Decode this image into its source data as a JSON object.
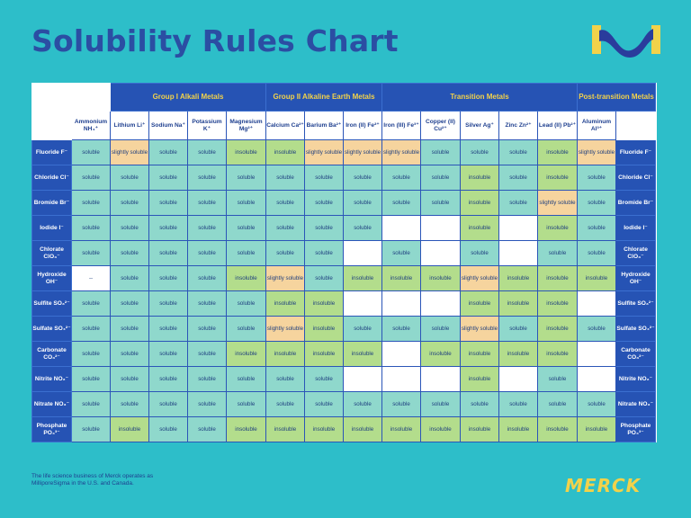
{
  "title": "Solubility Rules Chart",
  "footer_note": "The life science business of Merck operates as MilliporeSigma in the U.S. and Canada.",
  "brand_bottom": "MERCK",
  "group_headers": [
    {
      "label": "Group I Alkali Metals",
      "span": 4
    },
    {
      "label": "Group II Alkaline Earth Metals",
      "span": 3
    },
    {
      "label": "Transition Metals",
      "span": 5
    },
    {
      "label": "Post-transition Metals",
      "span": 2
    }
  ],
  "cations": [
    "Ammonium NH₄⁺",
    "Lithium Li⁺",
    "Sodium Na⁺",
    "Potassium K⁺",
    "Magnesium Mg²⁺",
    "Calcium Ca²⁺",
    "Barium Ba²⁺",
    "Iron (II) Fe²⁺",
    "Iron (III) Fe³⁺",
    "Copper (II) Cu²⁺",
    "Silver Ag⁺",
    "Zinc Zn²⁺",
    "Lead (II) Pb²⁺",
    "Aluminum Al³⁺"
  ],
  "anions": [
    "Fluoride F⁻",
    "Chloride Cl⁻",
    "Bromide Br⁻",
    "Iodide I⁻",
    "Chlorate ClO₃⁻",
    "Hydroxide OH⁻",
    "Sulfite SO₃²⁻",
    "Sulfate SO₄²⁻",
    "Carbonate CO₃²⁻",
    "Nitrite NO₂⁻",
    "Nitrate NO₃⁻",
    "Phosphate PO₄³⁻"
  ],
  "rows": [
    [
      "soluble",
      "slightly soluble",
      "soluble",
      "soluble",
      "insoluble",
      "insoluble",
      "slightly soluble",
      "slightly soluble",
      "slightly soluble",
      "soluble",
      "soluble",
      "soluble",
      "insoluble",
      "slightly soluble"
    ],
    [
      "soluble",
      "soluble",
      "soluble",
      "soluble",
      "soluble",
      "soluble",
      "soluble",
      "soluble",
      "soluble",
      "soluble",
      "insoluble",
      "soluble",
      "insoluble",
      "soluble"
    ],
    [
      "soluble",
      "soluble",
      "soluble",
      "soluble",
      "soluble",
      "soluble",
      "soluble",
      "soluble",
      "soluble",
      "soluble",
      "insoluble",
      "soluble",
      "slightly soluble",
      "soluble"
    ],
    [
      "soluble",
      "soluble",
      "soluble",
      "soluble",
      "soluble",
      "soluble",
      "soluble",
      "soluble",
      "",
      "",
      "insoluble",
      "",
      "insoluble",
      "soluble"
    ],
    [
      "soluble",
      "soluble",
      "soluble",
      "soluble",
      "soluble",
      "soluble",
      "soluble",
      "",
      "soluble",
      "",
      "soluble",
      "",
      "soluble",
      "soluble"
    ],
    [
      "--",
      "soluble",
      "soluble",
      "soluble",
      "insoluble",
      "slightly soluble",
      "soluble",
      "insoluble",
      "insoluble",
      "insoluble",
      "slightly soluble",
      "insoluble",
      "insoluble",
      "insoluble"
    ],
    [
      "soluble",
      "soluble",
      "soluble",
      "soluble",
      "soluble",
      "insoluble",
      "insoluble",
      "",
      "",
      "",
      "insoluble",
      "insoluble",
      "insoluble",
      ""
    ],
    [
      "soluble",
      "soluble",
      "soluble",
      "soluble",
      "soluble",
      "slightly soluble",
      "insoluble",
      "soluble",
      "soluble",
      "soluble",
      "slightly soluble",
      "soluble",
      "insoluble",
      "soluble"
    ],
    [
      "soluble",
      "soluble",
      "soluble",
      "soluble",
      "insoluble",
      "insoluble",
      "insoluble",
      "insoluble",
      "",
      "insoluble",
      "insoluble",
      "insoluble",
      "insoluble",
      ""
    ],
    [
      "soluble",
      "soluble",
      "soluble",
      "soluble",
      "soluble",
      "soluble",
      "soluble",
      "",
      "",
      "",
      "insoluble",
      "",
      "soluble",
      ""
    ],
    [
      "soluble",
      "soluble",
      "soluble",
      "soluble",
      "soluble",
      "soluble",
      "soluble",
      "soluble",
      "soluble",
      "soluble",
      "soluble",
      "soluble",
      "soluble",
      "soluble"
    ],
    [
      "soluble",
      "insoluble",
      "soluble",
      "soluble",
      "insoluble",
      "insoluble",
      "insoluble",
      "insoluble",
      "insoluble",
      "insoluble",
      "insoluble",
      "insoluble",
      "insoluble",
      "insoluble"
    ]
  ],
  "colors": {
    "background": "#2dbec9",
    "header_blue": "#2653b4",
    "title_blue": "#2b4ea3",
    "group_text": "#f2d24a",
    "soluble": "#8fd8cc",
    "insoluble": "#b3dd8c",
    "slightly_soluble": "#f6d49e"
  },
  "logo_top_icon": "merck-m-icon"
}
